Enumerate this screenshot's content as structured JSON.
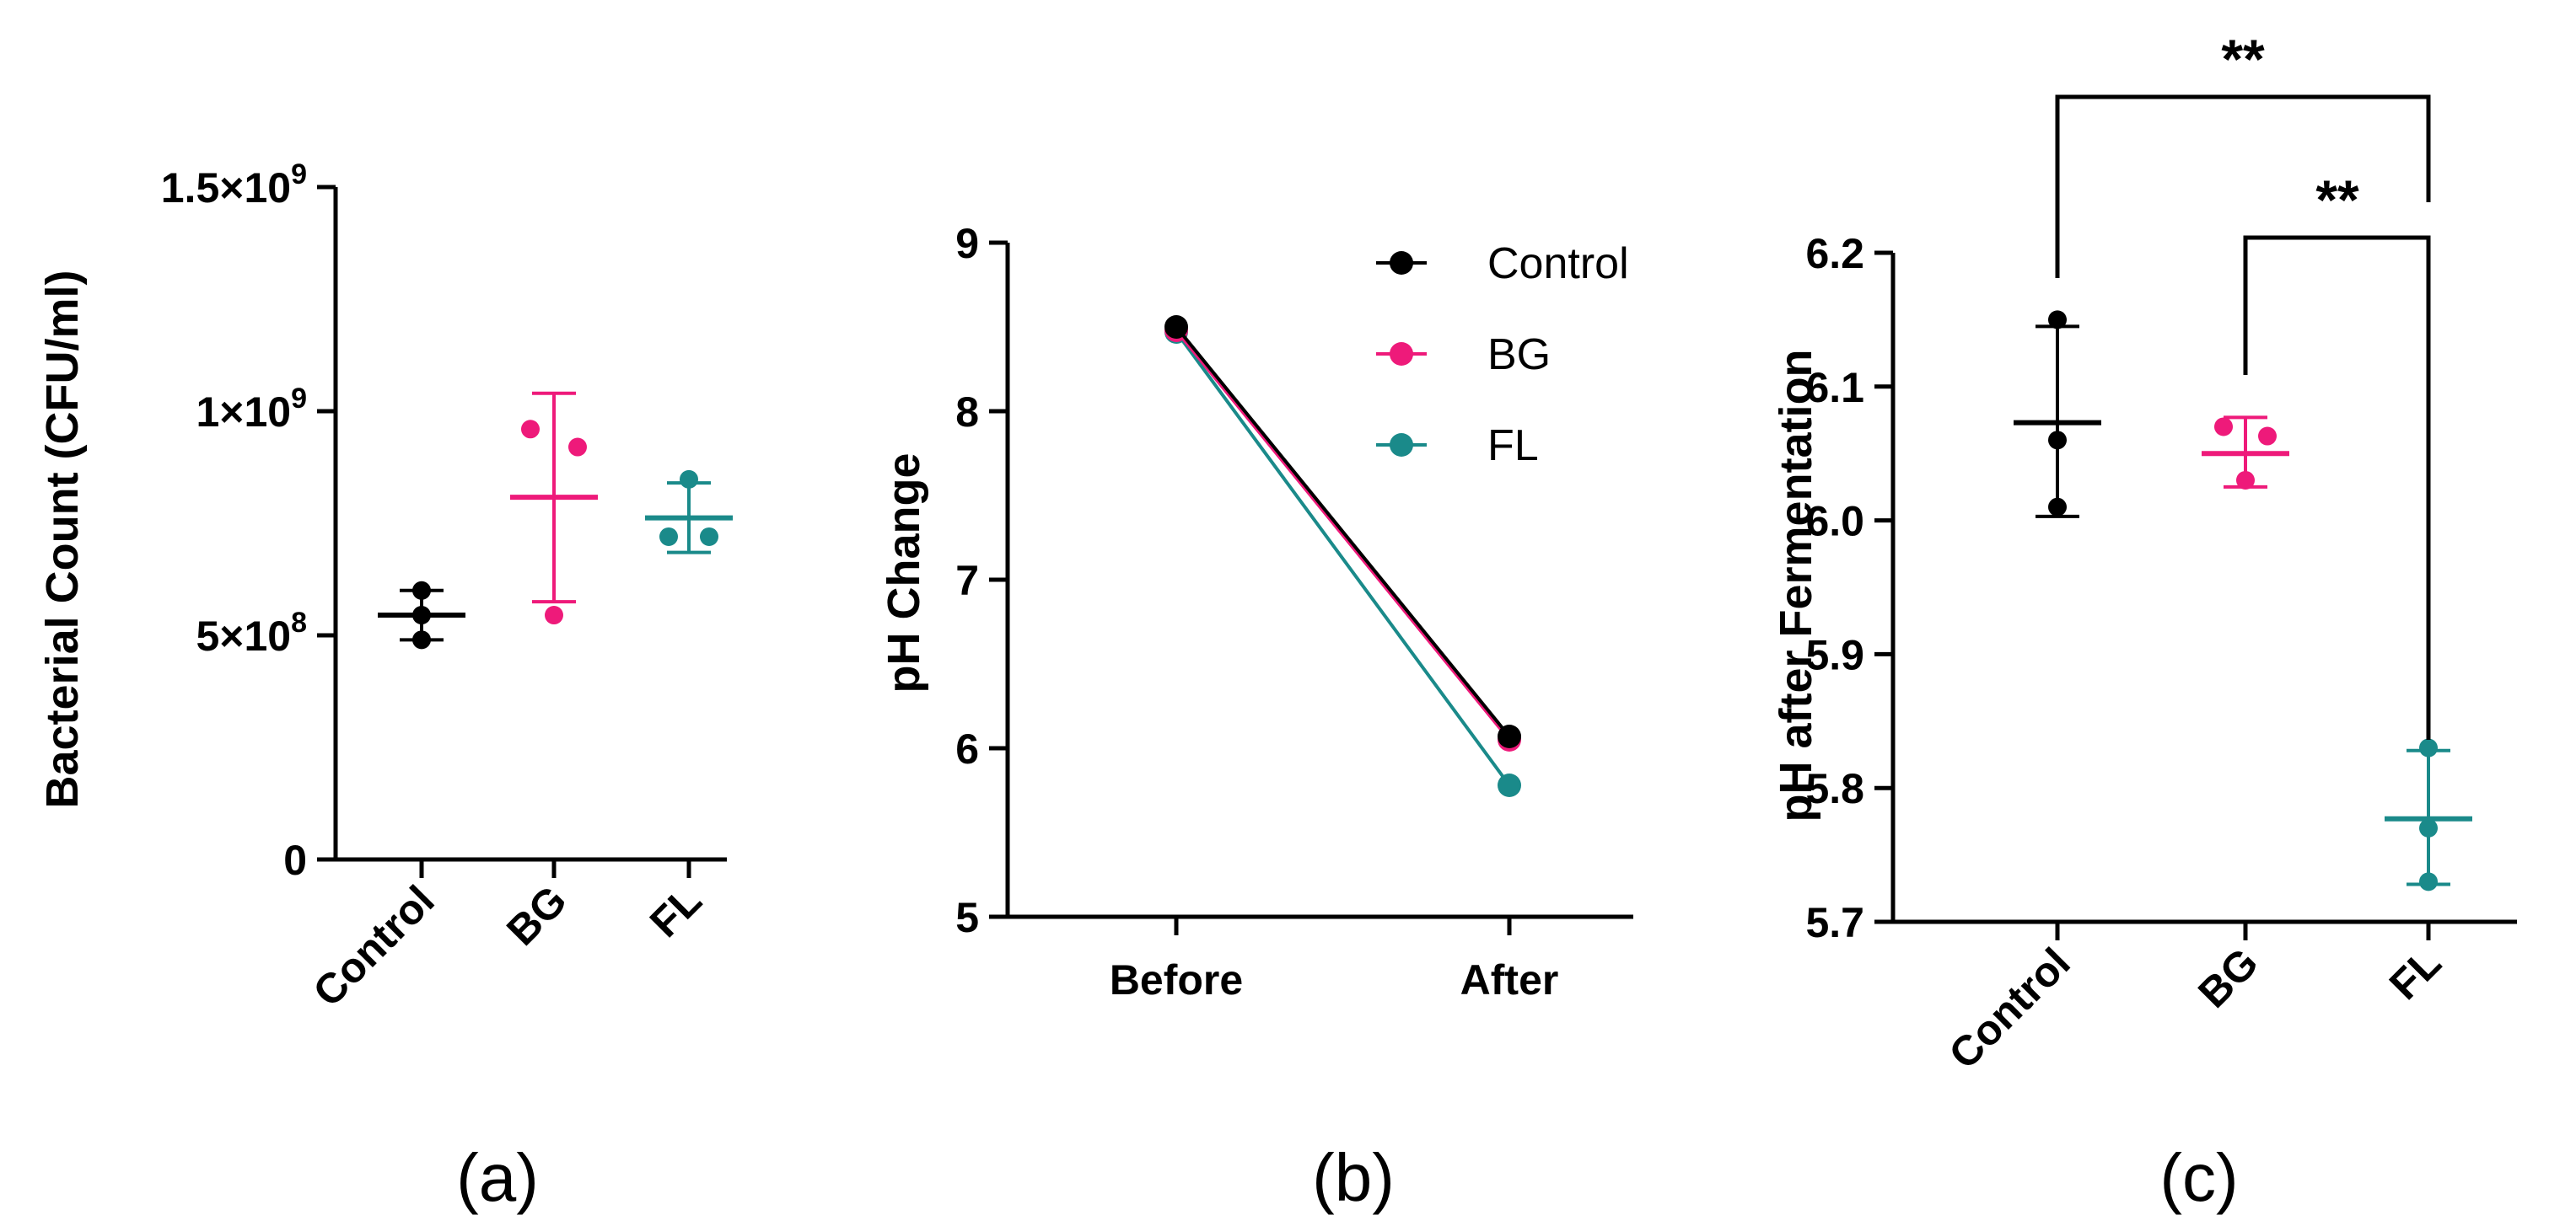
{
  "colors": {
    "control": "#000000",
    "bg": "#ee1a7a",
    "fl": "#1a8a8a",
    "axis": "#000000"
  },
  "chart_data": [
    {
      "type": "scatter",
      "panel": "(a)",
      "ylabel": "Bacterial Count (CFU/ml)",
      "ylim": [
        0,
        1500000000
      ],
      "yticks": [
        {
          "value": 0,
          "label": "0"
        },
        {
          "value": 500000000,
          "label": "5×10",
          "exp": "8"
        },
        {
          "value": 1000000000,
          "label": "1×10",
          "exp": "9"
        },
        {
          "value": 1500000000,
          "label": "1.5×10",
          "exp": "9"
        }
      ],
      "categories": [
        "Control",
        "BG",
        "FL"
      ],
      "series": [
        {
          "name": "Control",
          "color": "#000000",
          "points": [
            600000000,
            545000000,
            490000000
          ],
          "mean": 545000000,
          "sd_low": 490000000,
          "sd_high": 600000000
        },
        {
          "name": "BG",
          "color": "#ee1a7a",
          "points": [
            960000000,
            920000000,
            545000000
          ],
          "mean": 808000000,
          "sd_low": 575000000,
          "sd_high": 1040000000
        },
        {
          "name": "FL",
          "color": "#1a8a8a",
          "points": [
            848000000,
            720000000,
            720000000
          ],
          "mean": 762000000,
          "sd_low": 685000000,
          "sd_high": 840000000
        }
      ]
    },
    {
      "type": "line",
      "panel": "(b)",
      "ylabel": "pH Change",
      "ylim": [
        5,
        9
      ],
      "yticks": [
        5,
        6,
        7,
        8,
        9
      ],
      "categories": [
        "Before",
        "After"
      ],
      "legend": {
        "position": "top-right"
      },
      "series": [
        {
          "name": "Control",
          "color": "#000000",
          "values": [
            8.5,
            6.07
          ]
        },
        {
          "name": "BG",
          "color": "#ee1a7a",
          "values": [
            8.48,
            6.05
          ]
        },
        {
          "name": "FL",
          "color": "#1a8a8a",
          "values": [
            8.47,
            5.78
          ]
        }
      ]
    },
    {
      "type": "scatter",
      "panel": "(c)",
      "ylabel": "pH after Fermentation",
      "ylim": [
        5.7,
        6.2
      ],
      "yticks": [
        5.7,
        5.8,
        5.9,
        6.0,
        6.1,
        6.2
      ],
      "categories": [
        "Control",
        "BG",
        "FL"
      ],
      "series": [
        {
          "name": "Control",
          "color": "#000000",
          "points": [
            6.15,
            6.06,
            6.01
          ],
          "mean": 6.073,
          "sd_low": 6.003,
          "sd_high": 6.145
        },
        {
          "name": "BG",
          "color": "#ee1a7a",
          "points": [
            6.07,
            6.063,
            6.03
          ],
          "mean": 6.05,
          "sd_low": 6.025,
          "sd_high": 6.077
        },
        {
          "name": "FL",
          "color": "#1a8a8a",
          "points": [
            5.83,
            5.77,
            5.73
          ],
          "mean": 5.777,
          "sd_low": 5.728,
          "sd_high": 5.828
        }
      ],
      "annotations": [
        {
          "from": "Control",
          "to": "FL",
          "label": "**"
        },
        {
          "from": "BG",
          "to": "FL",
          "label": "**"
        }
      ]
    }
  ]
}
